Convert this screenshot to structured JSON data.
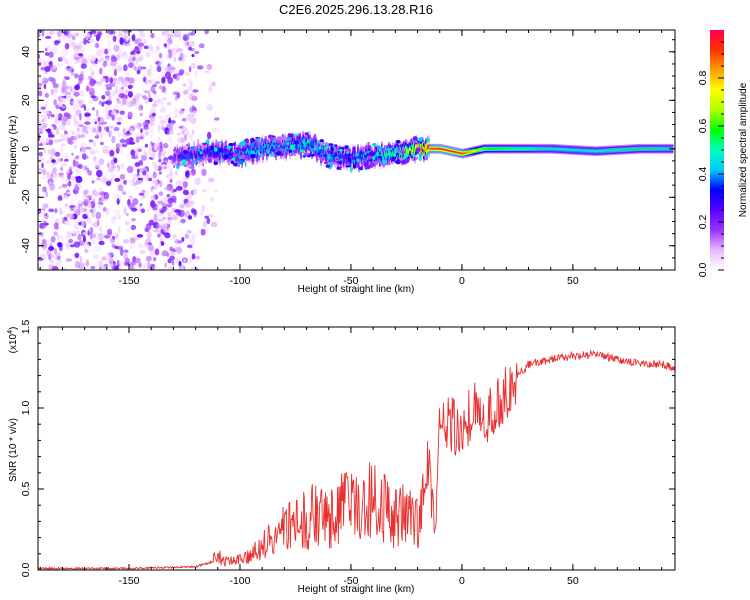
{
  "title": "C2E6.2025.296.13.28.R16",
  "chart_data": [
    {
      "type": "heatmap",
      "name": "spectrogram",
      "xlabel": "Height of straight line (km)",
      "ylabel": "Frequency (Hz)",
      "xlim": [
        -191,
        96
      ],
      "ylim": [
        -50,
        49
      ],
      "xticks": [
        -150,
        -100,
        -50,
        0,
        50
      ],
      "xtick_labels": [
        "-150",
        "-100",
        "-50",
        "0",
        "50"
      ],
      "yticks": [
        -40,
        -20,
        0,
        20,
        40
      ],
      "ytick_labels": [
        "-40",
        "-20",
        "0",
        "20",
        "40"
      ],
      "colorbar": {
        "label": "Normalized spectral amplitude",
        "range": [
          0,
          1
        ],
        "ticks": [
          0.0,
          0.2,
          0.4,
          0.6,
          0.8
        ],
        "tick_labels": [
          "0.0",
          "0.2",
          "0.4",
          "0.6",
          "0.8"
        ],
        "colors": [
          "#ffffff",
          "#e8b8ff",
          "#9b30ff",
          "#5a00ff",
          "#0000ff",
          "#00c8ff",
          "#00ffc0",
          "#00ff00",
          "#b0ff00",
          "#ffff00",
          "#ffa000",
          "#ff3000",
          "#ff0050"
        ]
      },
      "ridge": {
        "x": [
          -130,
          -120,
          -110,
          -100,
          -90,
          -80,
          -70,
          -60,
          -50,
          -40,
          -30,
          -20,
          -15,
          -10,
          0,
          10,
          20,
          40,
          60,
          80,
          95
        ],
        "y": [
          -3,
          -2,
          -1,
          -2,
          0,
          1,
          2,
          -3,
          -4,
          -3,
          -2,
          0,
          0,
          0,
          -2,
          0,
          0,
          0,
          -1,
          0,
          0
        ],
        "amplitude": [
          0.25,
          0.3,
          0.35,
          0.4,
          0.45,
          0.4,
          0.5,
          0.35,
          0.35,
          0.45,
          0.55,
          0.8,
          0.9,
          0.95,
          0.9,
          0.6,
          0.55,
          0.5,
          0.5,
          0.55,
          0.5
        ]
      },
      "noise_region_x": [
        -191,
        -120
      ]
    },
    {
      "type": "line",
      "name": "snr",
      "xlabel": "Height of straight line (km)",
      "ylabel": "SNR (10 * v/v)",
      "scale_label": "(x10",
      "scale_exp": "4",
      "scale_close": ")",
      "xlim": [
        -191,
        96
      ],
      "ylim": [
        0,
        1.5
      ],
      "xticks": [
        -150,
        -100,
        -50,
        0,
        50
      ],
      "xtick_labels": [
        "-150",
        "-100",
        "-50",
        "0",
        "50"
      ],
      "yticks": [
        0,
        0.5,
        1.0,
        1.5
      ],
      "ytick_labels": [
        "0.0",
        "0.5",
        "1.0",
        "1.5"
      ],
      "line_color": "#e83030",
      "series": [
        {
          "name": "SNR",
          "x": [
            -191,
            -150,
            -120,
            -110,
            -105,
            -100,
            -95,
            -90,
            -85,
            -80,
            -75,
            -70,
            -65,
            -60,
            -55,
            -50,
            -45,
            -40,
            -35,
            -30,
            -25,
            -20,
            -15,
            -12,
            -10,
            -5,
            0,
            5,
            10,
            15,
            20,
            25,
            30,
            40,
            50,
            60,
            70,
            80,
            90,
            96
          ],
          "y": [
            0.01,
            0.01,
            0.02,
            0.06,
            0.04,
            0.05,
            0.08,
            0.12,
            0.14,
            0.2,
            0.25,
            0.22,
            0.28,
            0.22,
            0.3,
            0.28,
            0.3,
            0.32,
            0.3,
            0.25,
            0.3,
            0.25,
            0.7,
            0.2,
            0.95,
            0.9,
            0.85,
            1.0,
            0.9,
            1.0,
            1.1,
            1.2,
            1.27,
            1.3,
            1.32,
            1.33,
            1.3,
            1.28,
            1.27,
            1.25
          ]
        }
      ]
    }
  ]
}
